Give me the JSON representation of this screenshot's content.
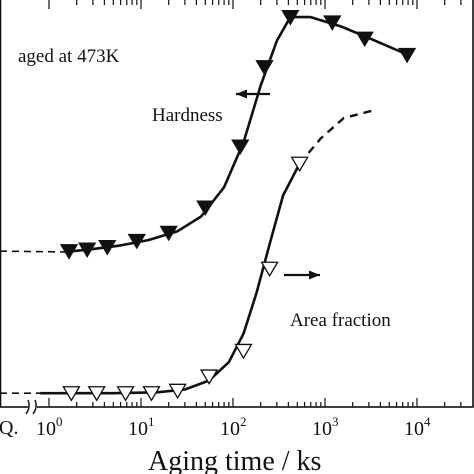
{
  "chart_data": {
    "type": "line",
    "xscale": "log",
    "xlabel": "Aging time / ks",
    "xlim": [
      1,
      100000
    ],
    "x_ticks": [
      {
        "value": 1,
        "base": "10",
        "exp": "0"
      },
      {
        "value": 10,
        "base": "10",
        "exp": "1"
      },
      {
        "value": 100,
        "base": "10",
        "exp": "2"
      },
      {
        "value": 1000,
        "base": "10",
        "exp": "3"
      },
      {
        "value": 10000,
        "base": "10",
        "exp": "4"
      }
    ],
    "wq_tick_label": "Q.",
    "ylim": [
      0,
      1
    ],
    "annotations": {
      "condition": "aged at 473K",
      "hardness": "Hardness",
      "area_fraction": "Area fraction"
    },
    "series": [
      {
        "name": "Hardness",
        "marker": "filled-down-triangle",
        "arrow": "left",
        "points": [
          [
            1.65,
            0.383
          ],
          [
            2.6,
            0.387
          ],
          [
            4.3,
            0.393
          ],
          [
            9.0,
            0.408
          ],
          [
            20,
            0.428
          ],
          [
            50,
            0.49
          ],
          [
            120,
            0.64
          ],
          [
            220,
            0.835
          ],
          [
            420,
            0.958
          ],
          [
            1200,
            0.945
          ],
          [
            2700,
            0.905
          ],
          [
            7800,
            0.865
          ]
        ],
        "fit_curve": [
          [
            1.5,
            0.381
          ],
          [
            3,
            0.388
          ],
          [
            6,
            0.397
          ],
          [
            12,
            0.41
          ],
          [
            25,
            0.432
          ],
          [
            45,
            0.468
          ],
          [
            80,
            0.54
          ],
          [
            130,
            0.65
          ],
          [
            200,
            0.79
          ],
          [
            300,
            0.9
          ],
          [
            420,
            0.958
          ],
          [
            700,
            0.958
          ],
          [
            1500,
            0.935
          ],
          [
            3500,
            0.9
          ],
          [
            8000,
            0.865
          ]
        ],
        "as_quenched_extrapolation": [
          [
            0.1,
            0.383
          ],
          [
            1.5,
            0.381
          ]
        ]
      },
      {
        "name": "Area fraction",
        "marker": "open-down-triangle",
        "arrow": "right",
        "points": [
          [
            1.75,
            0.034
          ],
          [
            3.3,
            0.034
          ],
          [
            6.8,
            0.034
          ],
          [
            13,
            0.034
          ],
          [
            25,
            0.04
          ],
          [
            55,
            0.075
          ],
          [
            130,
            0.138
          ],
          [
            250,
            0.34
          ],
          [
            530,
            0.598
          ]
        ],
        "fit_curve": [
          [
            0.8,
            0.034
          ],
          [
            5,
            0.034
          ],
          [
            15,
            0.036
          ],
          [
            30,
            0.043
          ],
          [
            55,
            0.065
          ],
          [
            90,
            0.11
          ],
          [
            130,
            0.18
          ],
          [
            180,
            0.28
          ],
          [
            250,
            0.4
          ],
          [
            350,
            0.52
          ],
          [
            530,
            0.598
          ]
        ],
        "extrapolation": [
          [
            530,
            0.598
          ],
          [
            900,
            0.66
          ],
          [
            1600,
            0.71
          ],
          [
            3500,
            0.73
          ]
        ]
      }
    ]
  }
}
